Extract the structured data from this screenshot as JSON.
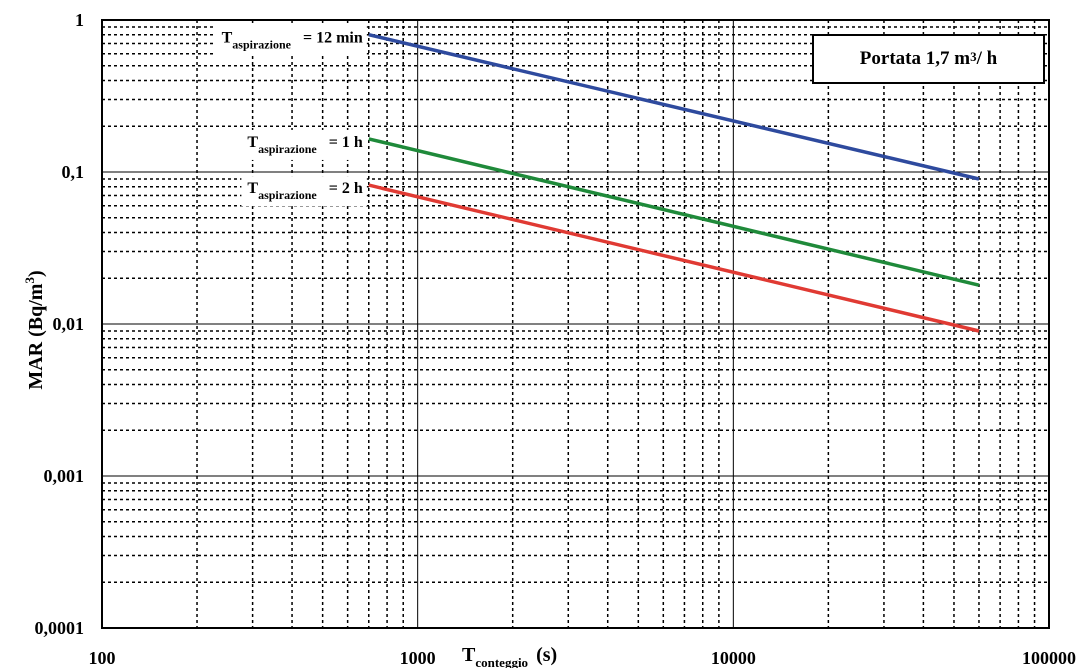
{
  "chart_data": {
    "type": "line",
    "title": "",
    "xlabel": {
      "main": "T",
      "sub": "conteggio",
      "unit": "(s)"
    },
    "ylabel": {
      "main": "MAR (Bq/m",
      "sup": "3",
      "end": ")"
    },
    "x_scale": "log",
    "y_scale": "log",
    "xlim": [
      100,
      100000
    ],
    "ylim": [
      0.0001,
      1
    ],
    "x_ticks": [
      "100",
      "1000",
      "10000",
      "100000"
    ],
    "y_ticks": [
      "1",
      "0,1",
      "0,01",
      "0,001",
      "0,0001"
    ],
    "grid": true,
    "series": [
      {
        "name": "12 min",
        "color": "#2e4a9e",
        "x": [
          700,
          60000
        ],
        "y": [
          0.8,
          0.09
        ],
        "label_prefix": "T",
        "label_sub": "aspirazione",
        "label_suffix": "= 12 min"
      },
      {
        "name": "1 h",
        "color": "#1f8a3a",
        "x": [
          700,
          60000
        ],
        "y": [
          0.165,
          0.018
        ],
        "label_prefix": "T",
        "label_sub": "aspirazione",
        "label_suffix": "= 1 h"
      },
      {
        "name": "2 h",
        "color": "#e03a33",
        "x": [
          700,
          60000
        ],
        "y": [
          0.082,
          0.009
        ],
        "label_prefix": "T",
        "label_sub": "aspirazione",
        "label_suffix": "= 2 h"
      }
    ],
    "annotation": {
      "text": "Portata 1,7 m",
      "sup": "3",
      "end": "/ h"
    }
  }
}
